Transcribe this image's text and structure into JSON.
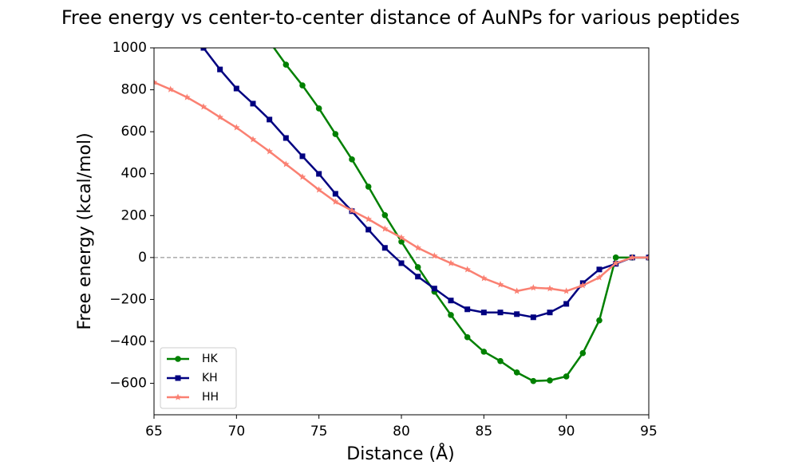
{
  "chart_data": {
    "type": "line",
    "title": "Free energy vs center-to-center distance of AuNPs for various peptides",
    "xlabel": "Distance (Å)",
    "ylabel": "Free energy (kcal/mol)",
    "x": [
      65,
      66,
      67,
      68,
      69,
      70,
      71,
      72,
      73,
      74,
      75,
      76,
      77,
      78,
      79,
      80,
      81,
      82,
      83,
      84,
      85,
      86,
      87,
      88,
      89,
      90,
      91,
      92,
      93,
      94,
      95
    ],
    "series": [
      {
        "name": "HK",
        "color": "#008000",
        "marker": "circle",
        "values": [
          null,
          null,
          null,
          null,
          null,
          null,
          null,
          1030,
          920,
          821,
          711,
          589,
          468,
          338,
          202,
          76,
          -46,
          -163,
          -274,
          -380,
          -449,
          -494,
          -548,
          -589,
          -586,
          -567,
          -456,
          -300,
          0,
          0,
          0
        ]
      },
      {
        "name": "KH",
        "color": "#000080",
        "marker": "square",
        "values": [
          null,
          null,
          null,
          1000,
          897,
          806,
          734,
          658,
          570,
          483,
          399,
          304,
          221,
          133,
          46,
          -27,
          -91,
          -148,
          -205,
          -247,
          -262,
          -262,
          -270,
          -285,
          -262,
          -221,
          -122,
          -57,
          -30,
          0,
          0
        ]
      },
      {
        "name": "HH",
        "color": "#fa8072",
        "marker": "star",
        "values": [
          836,
          802,
          764,
          719,
          669,
          620,
          563,
          506,
          445,
          384,
          323,
          266,
          224,
          183,
          137,
          95,
          46,
          8,
          -27,
          -57,
          -99,
          -129,
          -160,
          -144,
          -148,
          -160,
          -133,
          -95,
          -27,
          0,
          0
        ]
      }
    ],
    "xlim": [
      65,
      95
    ],
    "xticks": [
      65,
      70,
      75,
      80,
      85,
      90,
      95
    ],
    "ylim": [
      -750,
      1000
    ],
    "yticks": [
      {
        "value": -600,
        "label": "−600"
      },
      {
        "value": -400,
        "label": "−400"
      },
      {
        "value": -200,
        "label": "−200"
      },
      0,
      200,
      400,
      600,
      800,
      1000
    ],
    "hline": 0,
    "legend": "lower left",
    "grid": false
  }
}
